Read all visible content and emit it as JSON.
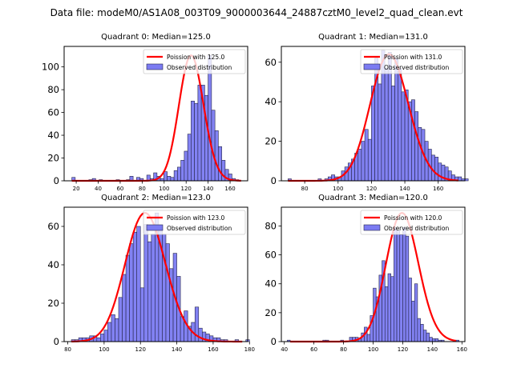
{
  "figure": {
    "suptitle": "Data file: modeM0/AS1A08_003T09_9000003644_24887cztM0_level2_quad_clean.evt"
  },
  "colors": {
    "bar_fill": "#7b7bf2",
    "bar_edge": "#26264a",
    "poisson_line": "#ff0000"
  },
  "chart_data": [
    {
      "type": "bar",
      "title": "Quadrant 0: Median=125.0",
      "legend": {
        "line_label": "Poission with 125.0",
        "bar_label": "Observed distribution",
        "placement": "upper right"
      },
      "median": 125.0,
      "xlim": [
        9,
        176
      ],
      "ylim": [
        0,
        118
      ],
      "xticks": [
        20,
        40,
        60,
        80,
        100,
        120,
        140,
        160
      ],
      "yticks": [
        0,
        20,
        40,
        60,
        80,
        100
      ],
      "bin_start": 16,
      "bin_width": 3.1,
      "counts": [
        3,
        0,
        0,
        0,
        0,
        1,
        2,
        0,
        1,
        0,
        0,
        0,
        0,
        1,
        0,
        0,
        1,
        4,
        0,
        3,
        2,
        0,
        5,
        2,
        7,
        4,
        2,
        8,
        4,
        3,
        9,
        12,
        18,
        26,
        41,
        70,
        68,
        84,
        84,
        75,
        110,
        62,
        44,
        30,
        18,
        10,
        6,
        2,
        1,
        0,
        0
      ],
      "poisson": {
        "mu": 125.0,
        "scale": 110,
        "x_range": [
          16,
          170
        ]
      }
    },
    {
      "type": "bar",
      "title": "Quadrant 1: Median=131.0",
      "legend": {
        "line_label": "Poission with 131.0",
        "bar_label": "Observed distribution",
        "placement": "upper right"
      },
      "median": 131.0,
      "xlim": [
        66,
        176
      ],
      "ylim": [
        0,
        68
      ],
      "xticks": [
        80,
        100,
        120,
        140,
        160
      ],
      "yticks": [
        0,
        20,
        40,
        60
      ],
      "bin_start": 70,
      "bin_width": 2.0,
      "counts": [
        1,
        0,
        0,
        0,
        0,
        0,
        0,
        0,
        0,
        1,
        0,
        1,
        2,
        3,
        2,
        2,
        5,
        7,
        9,
        11,
        14,
        16,
        20,
        26,
        21,
        48,
        62,
        49,
        66,
        57,
        65,
        48,
        62,
        57,
        45,
        46,
        40,
        41,
        35,
        27,
        26,
        20,
        16,
        13,
        12,
        9,
        8,
        7,
        5,
        3,
        2,
        2,
        1,
        1
      ],
      "poisson": {
        "mu": 131.0,
        "scale": 64,
        "x_range": [
          70,
          172
        ]
      }
    },
    {
      "type": "bar",
      "title": "Quadrant 2: Median=123.0",
      "legend": {
        "line_label": "Poission with 123.0",
        "bar_label": "Observed distribution",
        "placement": "upper right"
      },
      "median": 123.0,
      "xlim": [
        78,
        179
      ],
      "ylim": [
        0,
        70
      ],
      "xticks": [
        80,
        100,
        120,
        140,
        160,
        180
      ],
      "yticks": [
        0,
        20,
        40,
        60
      ],
      "bin_start": 82,
      "bin_width": 2.0,
      "counts": [
        1,
        1,
        2,
        2,
        2,
        3,
        3,
        2,
        4,
        6,
        10,
        14,
        12,
        23,
        35,
        45,
        51,
        57,
        60,
        28,
        61,
        52,
        56,
        67,
        59,
        56,
        51,
        38,
        46,
        34,
        13,
        16,
        8,
        10,
        18,
        7,
        5,
        4,
        3,
        2,
        2,
        1,
        1,
        0,
        0,
        1,
        0,
        0,
        1
      ],
      "poisson": {
        "mu": 123.0,
        "scale": 67,
        "x_range": [
          82,
          176
        ]
      }
    },
    {
      "type": "bar",
      "title": "Quadrant 3: Median=120.0",
      "legend": {
        "line_label": "Poission with 120.0",
        "bar_label": "Observed distribution",
        "placement": "upper right"
      },
      "median": 120.0,
      "xlim": [
        38,
        162
      ],
      "ylim": [
        0,
        93
      ],
      "xticks": [
        40,
        60,
        80,
        100,
        120,
        140,
        160
      ],
      "yticks": [
        0,
        20,
        40,
        60,
        80
      ],
      "bin_start": 42,
      "bin_width": 2.0,
      "counts": [
        1,
        0,
        0,
        0,
        0,
        0,
        0,
        0,
        0,
        0,
        0,
        0,
        1,
        1,
        0,
        0,
        0,
        0,
        1,
        0,
        0,
        3,
        3,
        3,
        2,
        6,
        10,
        5,
        18,
        37,
        31,
        46,
        56,
        38,
        47,
        45,
        79,
        77,
        74,
        79,
        73,
        44,
        28,
        40,
        16,
        12,
        8,
        6,
        3,
        2,
        2,
        1,
        1,
        0,
        0,
        0,
        0,
        1
      ],
      "poisson": {
        "mu": 120.0,
        "scale": 89,
        "x_range": [
          44,
          156
        ]
      }
    }
  ]
}
